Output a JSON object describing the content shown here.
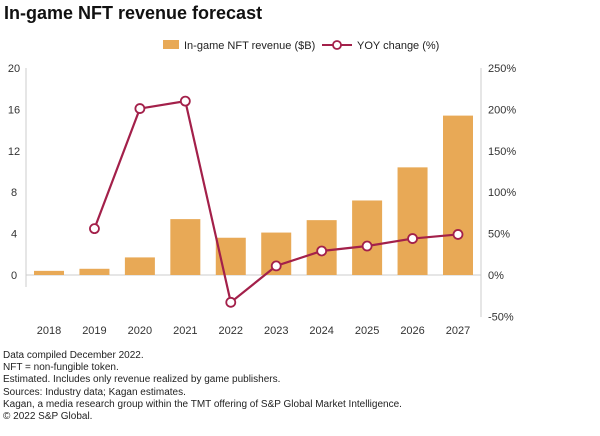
{
  "chart_data": {
    "type": "bar+line",
    "title": "In-game NFT revenue forecast",
    "categories": [
      "2018",
      "2019",
      "2020",
      "2021",
      "2022",
      "2023",
      "2024",
      "2025",
      "2026",
      "2027"
    ],
    "series": [
      {
        "name": "In-game NFT revenue ($B)",
        "type": "bar",
        "axis": "left",
        "color": "#e8a956",
        "values": [
          0.4,
          0.6,
          1.7,
          5.4,
          3.6,
          4.1,
          5.3,
          7.2,
          10.4,
          15.4
        ]
      },
      {
        "name": "YOY change (%)",
        "type": "line",
        "axis": "right",
        "color": "#a3204a",
        "values": [
          null,
          56,
          201,
          210,
          -33,
          11,
          29,
          35,
          44,
          49
        ]
      }
    ],
    "left_axis": {
      "range": [
        0,
        20
      ],
      "ticks": [
        "0",
        "4",
        "8",
        "12",
        "16",
        "20"
      ]
    },
    "right_axis": {
      "range": [
        -50,
        250
      ],
      "ticks": [
        "-50%",
        "0%",
        "50%",
        "100%",
        "150%",
        "200%",
        "250%"
      ]
    },
    "grid": false,
    "legend": "top-center"
  },
  "notes": [
    "Data compiled December 2022.",
    "NFT = non-fungible token.",
    "Estimated. Includes only revenue realized by game publishers.",
    "Sources: Industry data; Kagan estimates.",
    "Kagan, a media research group within the TMT offering of S&P Global Market Intelligence.",
    "© 2022 S&P Global."
  ]
}
